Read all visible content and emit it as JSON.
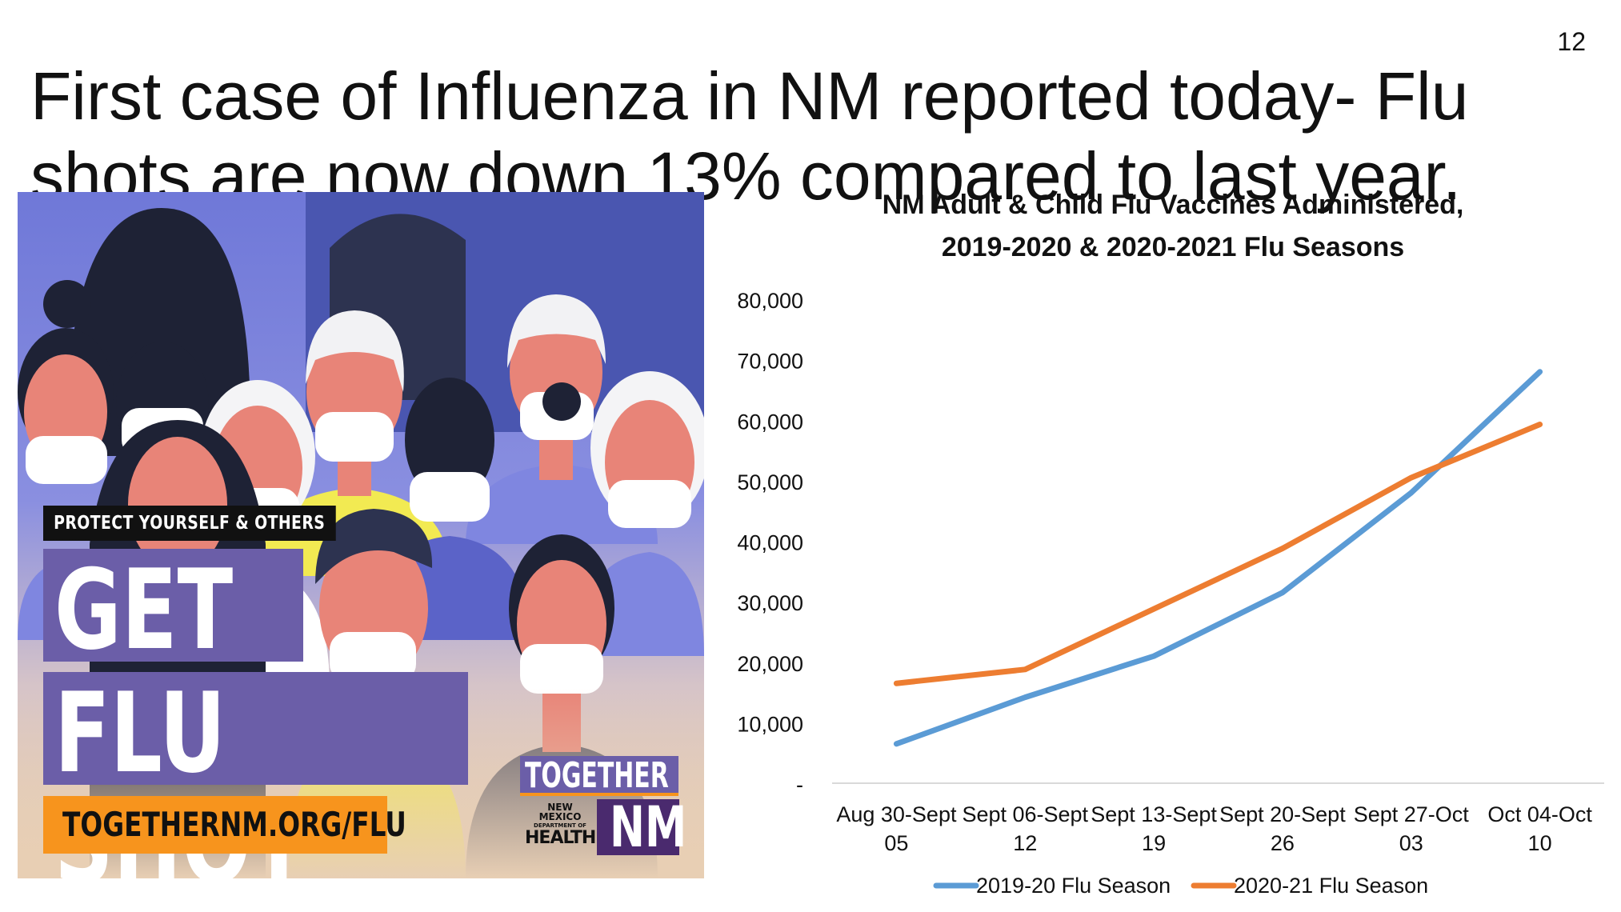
{
  "slide": {
    "title_line1": "First case of Influenza in NM reported today- Flu",
    "title_line2": "shots are now down 13% compared to last year.",
    "page_number": "12"
  },
  "poster": {
    "tagline": "PROTECT YOURSELF & OTHERS",
    "headline_line1": "GET A",
    "headline_line2": "FLU SHOT",
    "url": "TOGETHERNM.ORG/FLU",
    "brand_together": "TOGETHER",
    "brand_nm": "NM",
    "dept_line1": "NEW MEXICO",
    "dept_line2": "DEPARTMENT OF",
    "dept_line3": "HEALTH",
    "colors": {
      "purple": "#6b5ea8",
      "orange": "#f7941d",
      "dark_purple": "#4a2a6e",
      "black": "#111111"
    }
  },
  "chart_data": {
    "type": "line",
    "title_line1": "NM Adult & Child Flu Vaccines Administered,",
    "title_line2": "2019-2020 & 2020-2021 Flu Seasons",
    "categories": [
      [
        "Aug 30-Sept",
        "05"
      ],
      [
        "Sept 06-Sept",
        "12"
      ],
      [
        "Sept 13-Sept",
        "19"
      ],
      [
        "Sept 20-Sept",
        "26"
      ],
      [
        "Sept 27-Oct",
        "03"
      ],
      [
        "Oct 04-Oct",
        "10"
      ]
    ],
    "series": [
      {
        "name": "2019-20 Flu Season",
        "color": "#5b9bd5",
        "values": [
          6500,
          14200,
          21000,
          31500,
          48000,
          68000
        ]
      },
      {
        "name": "2020-21 Flu Season",
        "color": "#ed7d31",
        "values": [
          16500,
          18800,
          28800,
          38800,
          50500,
          59300
        ]
      }
    ],
    "ylim": [
      0,
      80000
    ],
    "yticks": [
      0,
      10000,
      20000,
      30000,
      40000,
      50000,
      60000,
      70000,
      80000
    ],
    "ytick_labels": [
      "-",
      "10,000",
      "20,000",
      "30,000",
      "40,000",
      "50,000",
      "60,000",
      "70,000",
      "80,000"
    ],
    "grid": false,
    "legend_position": "bottom"
  }
}
